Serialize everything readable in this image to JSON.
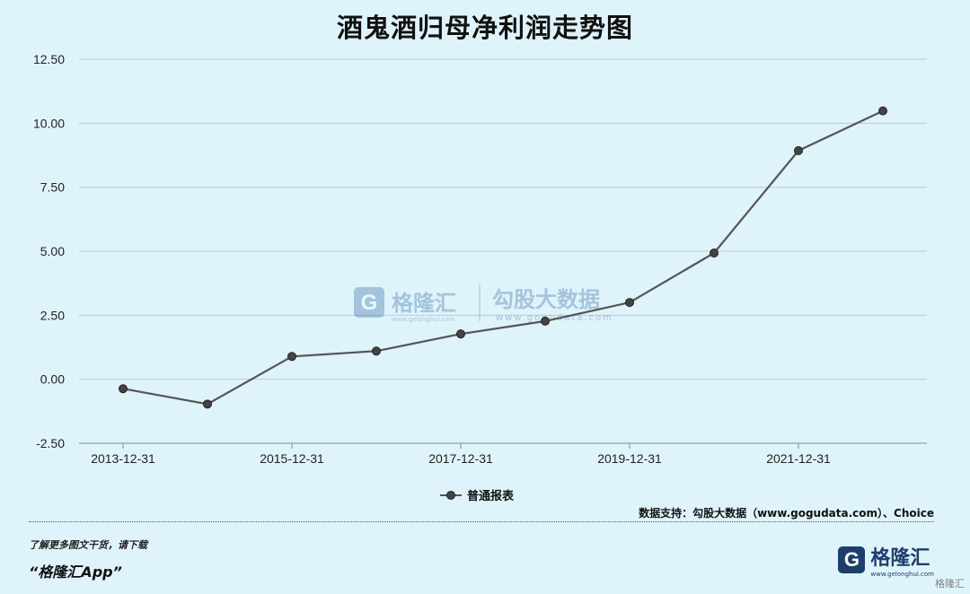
{
  "title": "酒鬼酒归母净利润走势图",
  "chart_data": {
    "type": "line",
    "title": "酒鬼酒归母净利润走势图",
    "x": [
      "2013-12-31",
      "2014-12-31",
      "2015-12-31",
      "2016-12-31",
      "2017-12-31",
      "2018-12-31",
      "2019-12-31",
      "2020-12-31",
      "2021-12-31",
      "2022-12-31"
    ],
    "x_tick_labels": [
      "2013-12-31",
      "2015-12-31",
      "2017-12-31",
      "2019-12-31",
      "2021-12-31"
    ],
    "y_ticks": [
      "12.50",
      "10.00",
      "7.50",
      "5.00",
      "2.50",
      "0.00",
      "-2.50"
    ],
    "ylim": [
      -2.5,
      12.5
    ],
    "grid": true,
    "legend_position": "bottom",
    "series": [
      {
        "name": "普通报表",
        "color": "#555555",
        "values": [
          -0.37,
          -0.97,
          0.89,
          1.1,
          1.77,
          2.27,
          3.0,
          4.93,
          8.93,
          10.48
        ]
      }
    ]
  },
  "watermark": {
    "brand": "格隆汇",
    "brand_sub": "www.gelonghui.com",
    "partner": "勾股大数据",
    "partner_sub": "www.gogudata.com"
  },
  "source": "数据支持：勾股大数据（www.gogudata.com）、Choice",
  "promo": {
    "line": "了解更多图文干货，请下载",
    "app": "“格隆汇App”"
  },
  "brand": {
    "mark": "G",
    "name": "格隆汇",
    "sub": "www.gelonghui.com"
  },
  "corner_text": "格隆汇"
}
